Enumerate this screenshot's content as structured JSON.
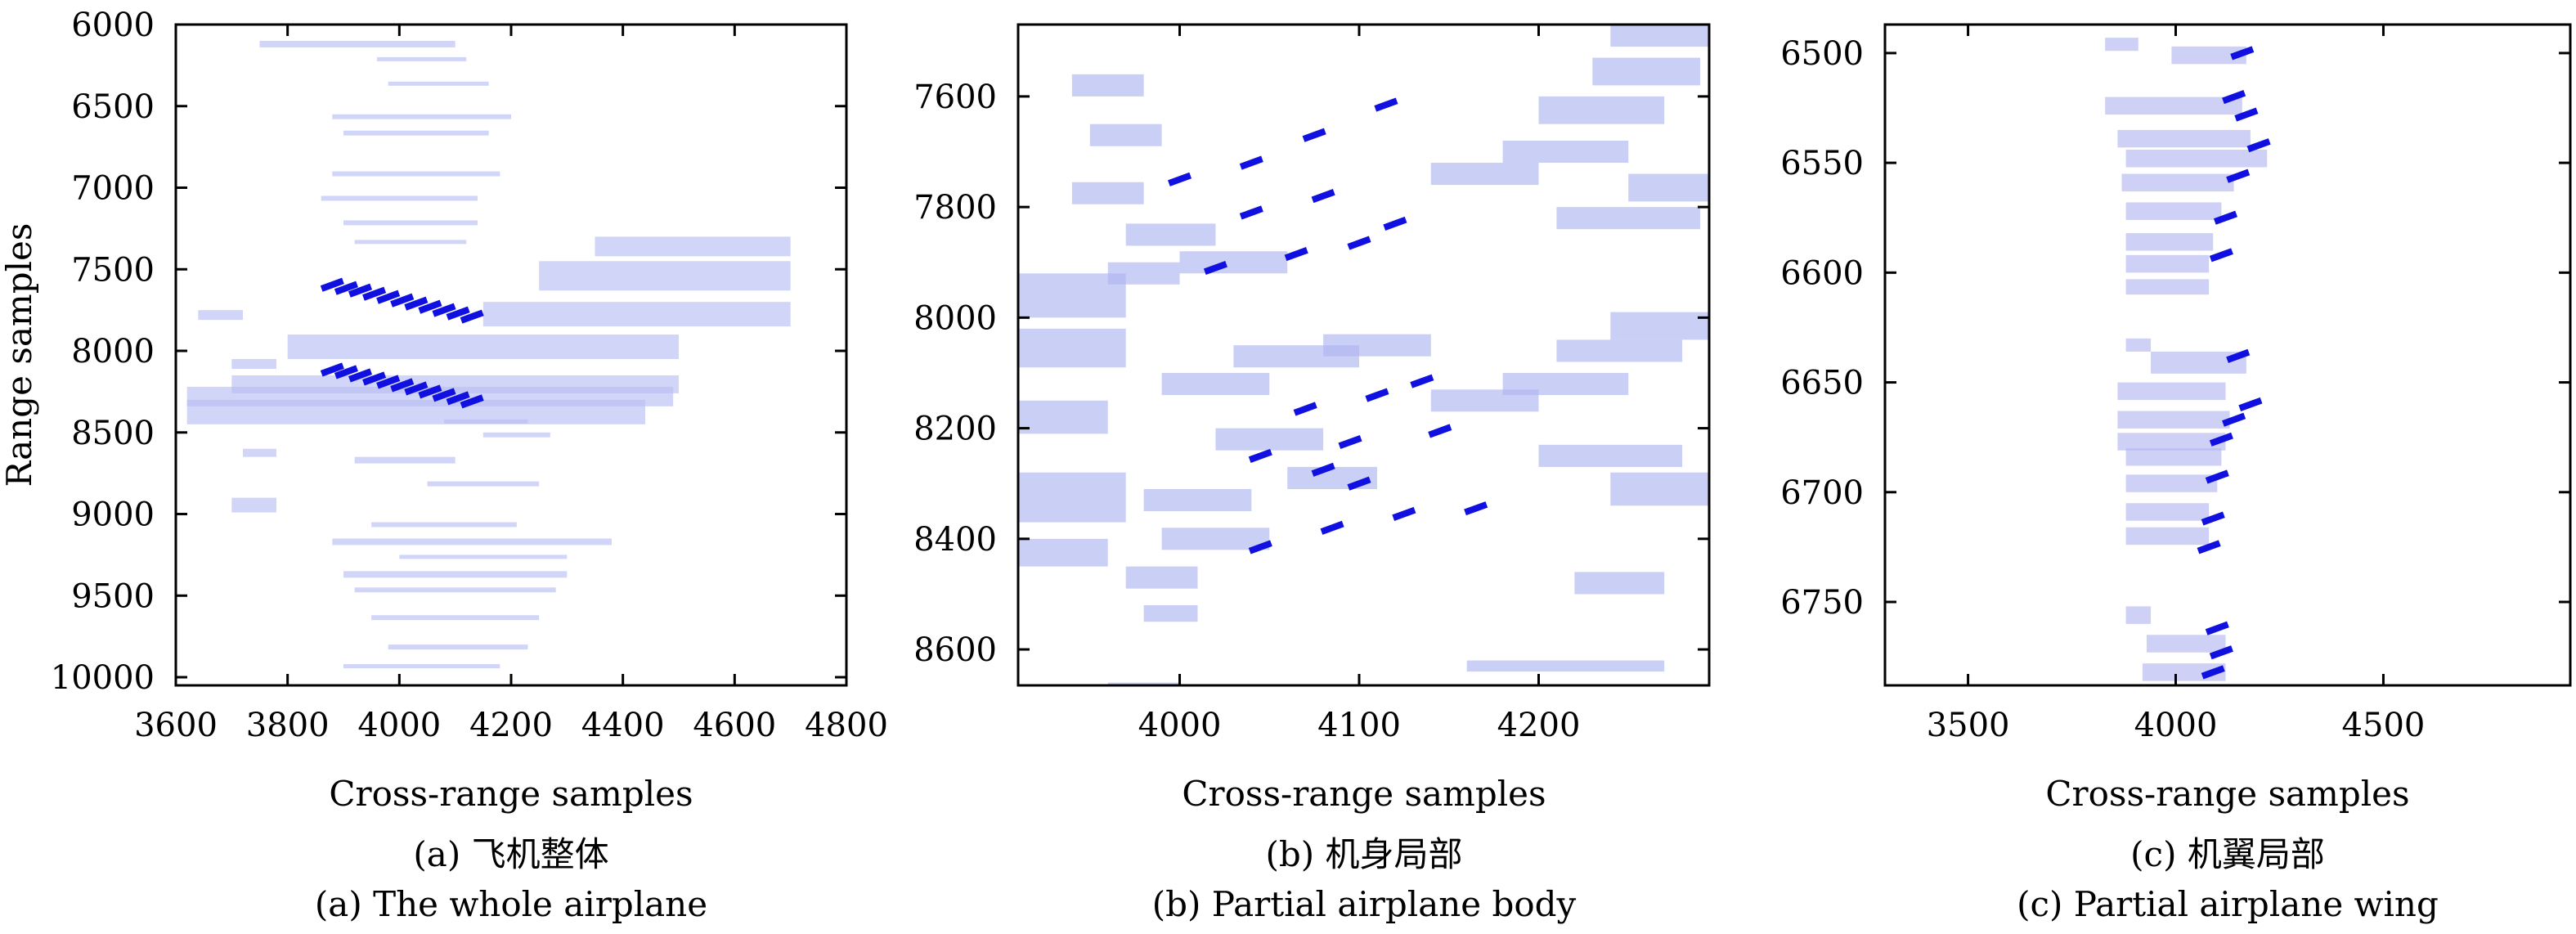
{
  "chart_data": [
    {
      "type": "scatter",
      "xlabel": "Cross-range samples",
      "ylabel": "Range samples",
      "caption_cn": "(a) 飞机整体",
      "caption_en": "(a) The whole airplane",
      "xlim": [
        3600,
        4800
      ],
      "ylim": [
        10050,
        6000
      ],
      "xticks": [
        "3600",
        "3800",
        "4000",
        "4200",
        "4400",
        "4600",
        "4800"
      ],
      "yticks": [
        "6000",
        "6500",
        "7000",
        "7500",
        "8000",
        "8500",
        "9000",
        "9500",
        "10000"
      ],
      "point_color": "#1010e0",
      "faint_color": "#b9bff2",
      "points": [
        [
          3880,
          7595
        ],
        [
          3905,
          7615
        ],
        [
          3930,
          7630
        ],
        [
          3955,
          7650
        ],
        [
          3980,
          7670
        ],
        [
          4005,
          7690
        ],
        [
          4030,
          7710
        ],
        [
          4055,
          7730
        ],
        [
          4080,
          7750
        ],
        [
          4105,
          7770
        ],
        [
          4130,
          7790
        ],
        [
          3880,
          8115
        ],
        [
          3905,
          8130
        ],
        [
          3930,
          8150
        ],
        [
          3955,
          8170
        ],
        [
          3980,
          8190
        ],
        [
          4005,
          8210
        ],
        [
          4030,
          8230
        ],
        [
          4055,
          8250
        ],
        [
          4080,
          8270
        ],
        [
          4105,
          8290
        ],
        [
          4130,
          8310
        ]
      ],
      "faint_blocks": [
        [
          3620,
          8300,
          820,
          150
        ],
        [
          3620,
          8220,
          870,
          120
        ],
        [
          3700,
          8150,
          800,
          110
        ],
        [
          3800,
          7900,
          700,
          150
        ],
        [
          4150,
          7700,
          550,
          150
        ],
        [
          4250,
          7450,
          450,
          180
        ],
        [
          4350,
          7300,
          350,
          120
        ],
        [
          3640,
          7750,
          80,
          60
        ],
        [
          3700,
          8050,
          80,
          60
        ],
        [
          3700,
          8900,
          80,
          90
        ],
        [
          3720,
          8600,
          60,
          50
        ],
        [
          3750,
          6100,
          350,
          40
        ],
        [
          3880,
          6550,
          320,
          30
        ],
        [
          3900,
          6650,
          260,
          30
        ],
        [
          3880,
          6900,
          300,
          30
        ],
        [
          3860,
          7050,
          280,
          30
        ],
        [
          3900,
          7200,
          240,
          30
        ],
        [
          3920,
          7320,
          200,
          25
        ],
        [
          3960,
          6200,
          160,
          25
        ],
        [
          3980,
          6350,
          180,
          25
        ],
        [
          3880,
          9150,
          500,
          40
        ],
        [
          3900,
          9350,
          400,
          40
        ],
        [
          3920,
          9450,
          360,
          30
        ],
        [
          3950,
          9620,
          300,
          30
        ],
        [
          3980,
          9800,
          250,
          30
        ],
        [
          3900,
          9920,
          280,
          25
        ],
        [
          3950,
          9050,
          260,
          30
        ],
        [
          4000,
          9250,
          300,
          25
        ],
        [
          3920,
          8650,
          180,
          40
        ],
        [
          4050,
          8800,
          200,
          30
        ],
        [
          4150,
          8500,
          120,
          30
        ],
        [
          4080,
          8420,
          150,
          25
        ]
      ]
    },
    {
      "type": "scatter",
      "xlabel": "Cross-range samples",
      "ylabel": "",
      "caption_cn": "(b) 机身局部",
      "caption_en": "(b) Partial airplane body",
      "xlim": [
        3910,
        4295
      ],
      "ylim": [
        8665,
        7470
      ],
      "xticks": [
        "4000",
        "4100",
        "4200"
      ],
      "yticks": [
        "7600",
        "7800",
        "8000",
        "8200",
        "8400",
        "8600"
      ],
      "point_color": "#1010e0",
      "faint_color": "#aeb6f0",
      "points": [
        [
          4000,
          7750
        ],
        [
          4040,
          7720
        ],
        [
          4075,
          7670
        ],
        [
          4115,
          7615
        ],
        [
          4040,
          7810
        ],
        [
          4080,
          7780
        ],
        [
          4120,
          7830
        ],
        [
          4065,
          7885
        ],
        [
          4100,
          7865
        ],
        [
          4020,
          7910
        ],
        [
          4045,
          8250
        ],
        [
          4070,
          8165
        ],
        [
          4110,
          8140
        ],
        [
          4135,
          8115
        ],
        [
          4095,
          8225
        ],
        [
          4145,
          8205
        ],
        [
          4080,
          8275
        ],
        [
          4100,
          8300
        ],
        [
          4045,
          8415
        ],
        [
          4085,
          8380
        ],
        [
          4125,
          8355
        ],
        [
          4165,
          8345
        ]
      ],
      "faint_blocks": [
        [
          3910,
          7920,
          60,
          80
        ],
        [
          3910,
          8020,
          60,
          70
        ],
        [
          3910,
          8150,
          50,
          60
        ],
        [
          3910,
          8280,
          60,
          90
        ],
        [
          3910,
          8400,
          50,
          50
        ],
        [
          3940,
          7560,
          40,
          40
        ],
        [
          3950,
          7650,
          40,
          40
        ],
        [
          3940,
          7755,
          40,
          40
        ],
        [
          3970,
          7830,
          50,
          40
        ],
        [
          3960,
          7900,
          40,
          40
        ],
        [
          4000,
          7880,
          60,
          40
        ],
        [
          3990,
          8100,
          60,
          40
        ],
        [
          4030,
          8050,
          70,
          40
        ],
        [
          4080,
          8030,
          60,
          40
        ],
        [
          4020,
          8200,
          60,
          40
        ],
        [
          4060,
          8270,
          50,
          40
        ],
        [
          3980,
          8310,
          60,
          40
        ],
        [
          3990,
          8380,
          60,
          40
        ],
        [
          4140,
          7720,
          60,
          40
        ],
        [
          4180,
          7680,
          70,
          40
        ],
        [
          4200,
          7600,
          70,
          50
        ],
        [
          4230,
          7530,
          60,
          50
        ],
        [
          4240,
          7470,
          55,
          40
        ],
        [
          4210,
          7800,
          80,
          40
        ],
        [
          4250,
          7740,
          45,
          50
        ],
        [
          4140,
          8130,
          60,
          40
        ],
        [
          4180,
          8100,
          70,
          40
        ],
        [
          4210,
          8040,
          70,
          40
        ],
        [
          4240,
          7990,
          55,
          50
        ],
        [
          4200,
          8230,
          80,
          40
        ],
        [
          4240,
          8280,
          55,
          60
        ],
        [
          3970,
          8450,
          40,
          40
        ],
        [
          3980,
          8520,
          30,
          30
        ],
        [
          4220,
          8460,
          50,
          40
        ],
        [
          4160,
          8620,
          110,
          20
        ],
        [
          3960,
          8660,
          40,
          10
        ]
      ]
    },
    {
      "type": "scatter",
      "xlabel": "Cross-range samples",
      "ylabel": "",
      "caption_cn": "(c) 机翼局部",
      "caption_en": "(c) Partial airplane wing",
      "xlim": [
        3300,
        4950
      ],
      "ylim": [
        6788,
        6487
      ],
      "xticks": [
        "3500",
        "4000",
        "4500"
      ],
      "yticks": [
        "6500",
        "6550",
        "6600",
        "6650",
        "6700",
        "6750"
      ],
      "point_color": "#1010e0",
      "faint_color": "#b3b9ef",
      "points": [
        [
          4160,
          6500
        ],
        [
          4140,
          6520
        ],
        [
          4170,
          6528
        ],
        [
          4200,
          6542
        ],
        [
          4150,
          6556
        ],
        [
          4120,
          6575
        ],
        [
          4110,
          6592
        ],
        [
          4150,
          6638
        ],
        [
          4180,
          6660
        ],
        [
          4140,
          6667
        ],
        [
          4110,
          6676
        ],
        [
          4100,
          6693
        ],
        [
          4090,
          6712
        ],
        [
          4080,
          6725
        ],
        [
          4100,
          6762
        ],
        [
          4110,
          6773
        ],
        [
          4090,
          6782
        ]
      ],
      "faint_blocks": [
        [
          3990,
          6497,
          180,
          8
        ],
        [
          3830,
          6520,
          330,
          8
        ],
        [
          3860,
          6535,
          320,
          8
        ],
        [
          3880,
          6544,
          340,
          8
        ],
        [
          3870,
          6555,
          270,
          8
        ],
        [
          3880,
          6568,
          230,
          8
        ],
        [
          3880,
          6582,
          210,
          8
        ],
        [
          3880,
          6592,
          200,
          8
        ],
        [
          3880,
          6603,
          200,
          7
        ],
        [
          3880,
          6630,
          60,
          6
        ],
        [
          3940,
          6636,
          230,
          10
        ],
        [
          3860,
          6650,
          260,
          8
        ],
        [
          3860,
          6663,
          270,
          8
        ],
        [
          3860,
          6673,
          260,
          8
        ],
        [
          3880,
          6680,
          230,
          8
        ],
        [
          3880,
          6692,
          220,
          8
        ],
        [
          3880,
          6705,
          200,
          8
        ],
        [
          3880,
          6716,
          200,
          8
        ],
        [
          3880,
          6752,
          60,
          8
        ],
        [
          3930,
          6765,
          190,
          8
        ],
        [
          3920,
          6778,
          200,
          8
        ],
        [
          3830,
          6493,
          80,
          6
        ]
      ]
    }
  ]
}
